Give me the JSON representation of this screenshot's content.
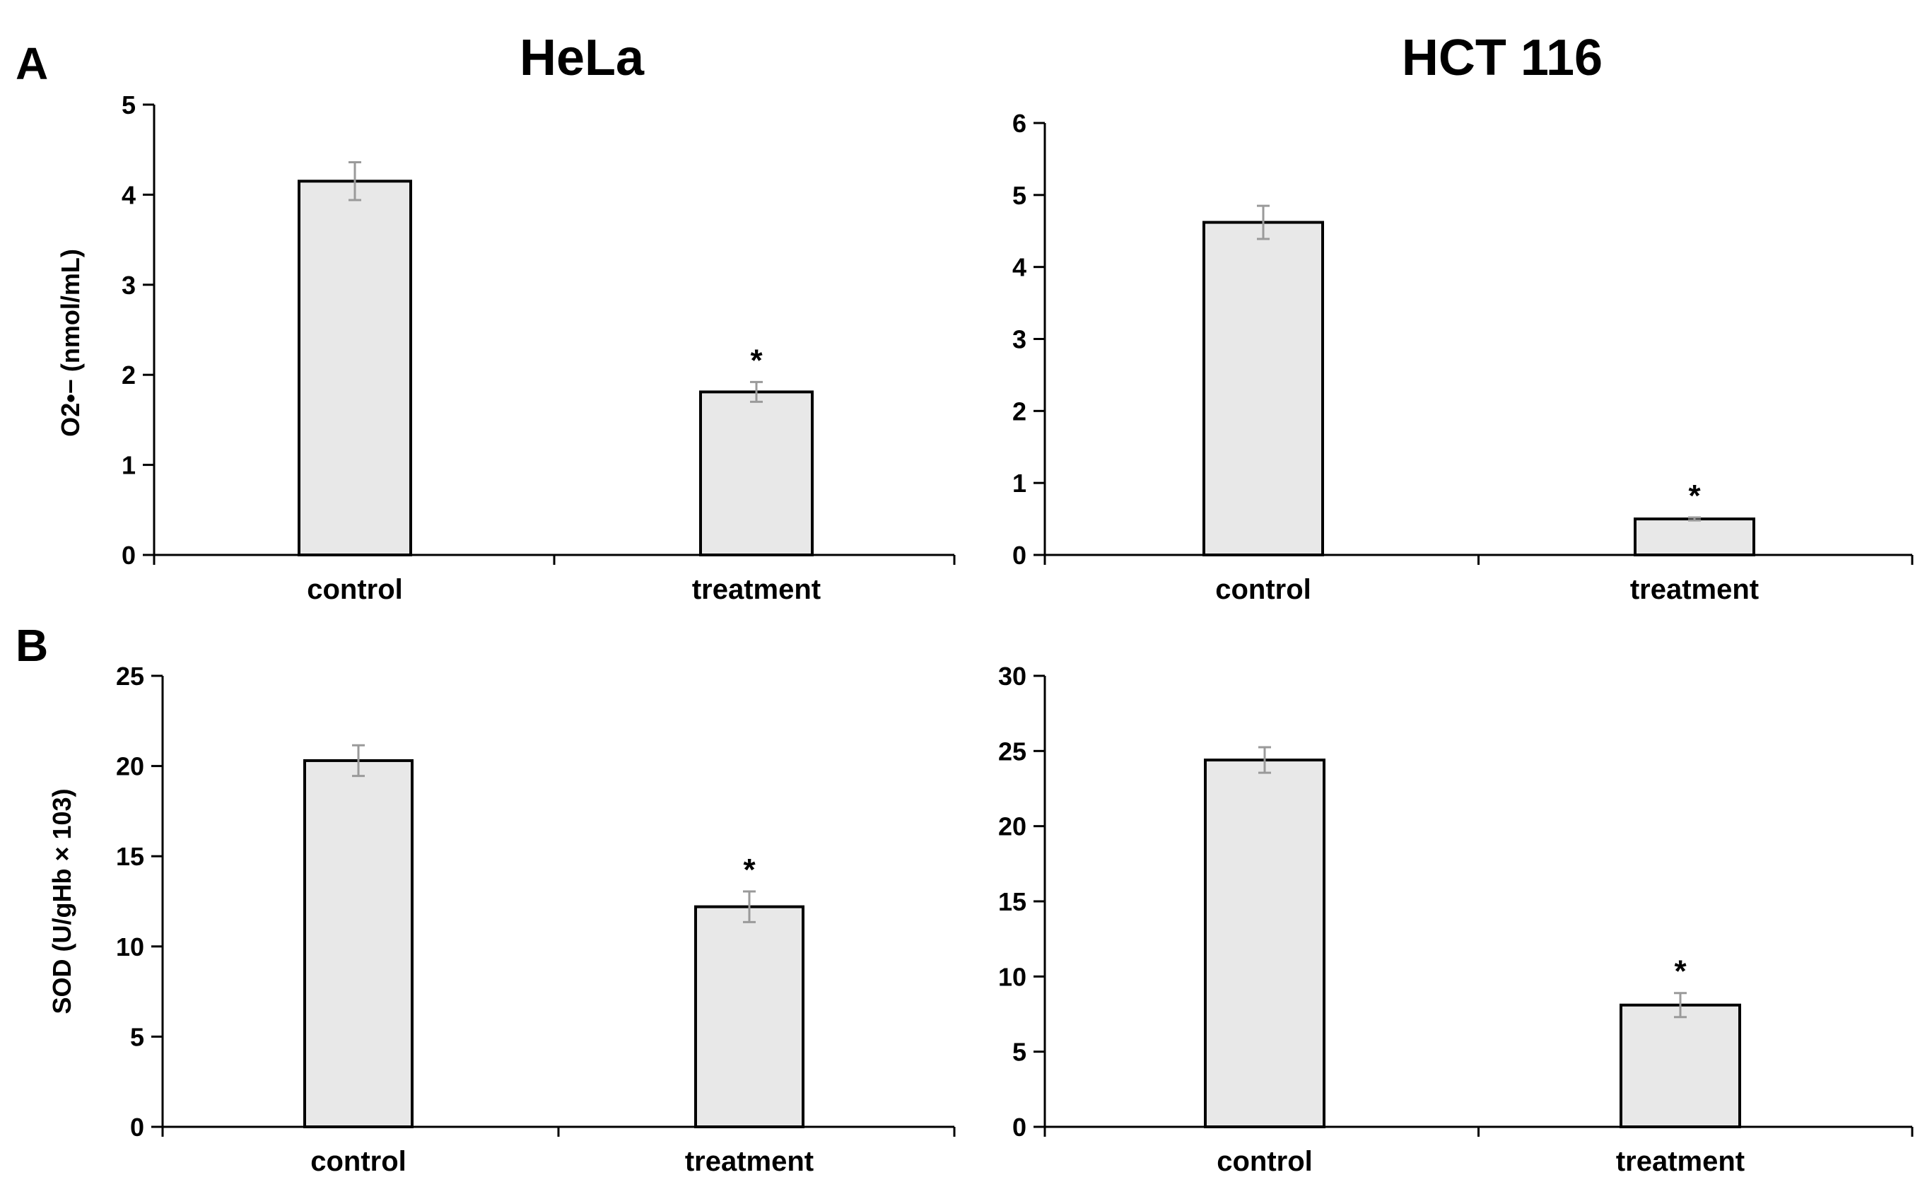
{
  "panels": {
    "a": "A",
    "b": "B"
  },
  "colors": {
    "bar_fill": "#e8e8e8",
    "bar_stroke": "#000000",
    "error_bar": "#9a9a9a",
    "axis": "#000000"
  },
  "chart_data": [
    {
      "type": "bar",
      "title": "HeLa",
      "panel": "A",
      "ylabel": "O2•− (nmol/mL)",
      "xlabel": "",
      "ylim": [
        0,
        5
      ],
      "yticks": [
        0,
        1,
        2,
        3,
        4,
        5
      ],
      "categories": [
        "control",
        "treatment"
      ],
      "values": [
        4.15,
        1.81
      ],
      "errors": [
        0.21,
        0.11
      ],
      "significance": [
        "",
        "*"
      ]
    },
    {
      "type": "bar",
      "title": "HCT 116",
      "panel": "A",
      "ylabel": "",
      "xlabel": "",
      "ylim": [
        0,
        6
      ],
      "yticks": [
        0,
        1,
        2,
        3,
        4,
        5,
        6
      ],
      "categories": [
        "control",
        "treatment"
      ],
      "values": [
        4.62,
        0.5
      ],
      "errors": [
        0.23,
        0.02
      ],
      "significance": [
        "",
        "*"
      ]
    },
    {
      "type": "bar",
      "title": "",
      "panel": "B",
      "ylabel": "SOD (U/gHb × 103)",
      "xlabel": "",
      "ylim": [
        0,
        25
      ],
      "yticks": [
        0,
        5,
        10,
        15,
        20,
        25
      ],
      "categories": [
        "control",
        "treatment"
      ],
      "values": [
        20.3,
        12.2
      ],
      "errors": [
        0.85,
        0.85
      ],
      "significance": [
        "",
        "*"
      ]
    },
    {
      "type": "bar",
      "title": "",
      "panel": "B",
      "ylabel": "",
      "xlabel": "",
      "ylim": [
        0,
        30
      ],
      "yticks": [
        0,
        5,
        10,
        15,
        20,
        25,
        30
      ],
      "categories": [
        "control",
        "treatment"
      ],
      "values": [
        24.4,
        8.1
      ],
      "errors": [
        0.85,
        0.8
      ],
      "significance": [
        "",
        "*"
      ]
    }
  ]
}
